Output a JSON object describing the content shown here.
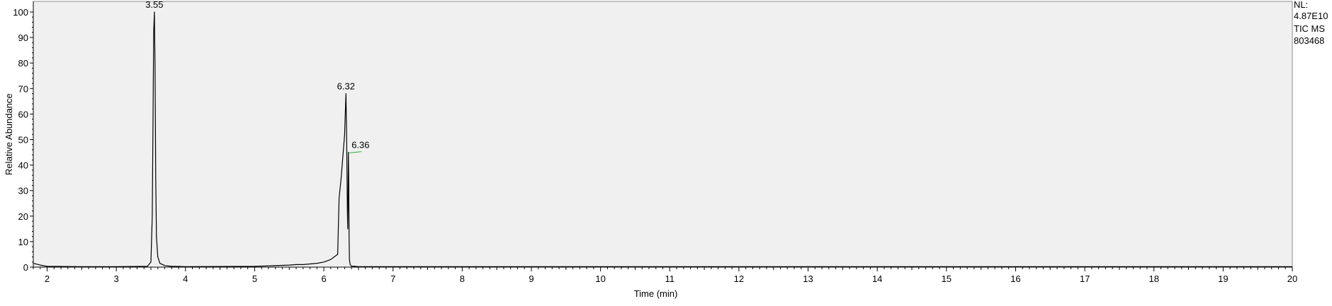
{
  "info": {
    "nl_label": "NL:",
    "nl_value": "4.87E10",
    "trace": "TIC  MS",
    "sample": "803468"
  },
  "chart_data": {
    "type": "line",
    "title": "",
    "xlabel": "Time (min)",
    "ylabel": "Relative Abundance",
    "xlim": [
      1.8,
      20
    ],
    "ylim": [
      0,
      100
    ],
    "x_ticks": [
      2,
      3,
      4,
      5,
      6,
      7,
      8,
      9,
      10,
      11,
      12,
      13,
      14,
      15,
      16,
      17,
      18,
      19,
      20
    ],
    "y_ticks": [
      0,
      10,
      20,
      30,
      40,
      50,
      60,
      70,
      80,
      90,
      100
    ],
    "grid": false,
    "series": [
      {
        "color": "#000000",
        "x": [
          1.8,
          1.9,
          2.0,
          2.5,
          3.0,
          3.45,
          3.5,
          3.52,
          3.53,
          3.54,
          3.55,
          3.56,
          3.57,
          3.58,
          3.6,
          3.63,
          3.7,
          3.8,
          4.0,
          5.0,
          5.5,
          5.6,
          5.7,
          5.9,
          6.0,
          6.1,
          6.2,
          6.22,
          6.25,
          6.28,
          6.3,
          6.31,
          6.32,
          6.33,
          6.34,
          6.345,
          6.35,
          6.355,
          6.36,
          6.365,
          6.37,
          6.38,
          6.4,
          6.45,
          6.5,
          7.0,
          10.0,
          15.0,
          20.0
        ],
        "y": [
          1.5,
          0.8,
          0.3,
          0.2,
          0.2,
          0.3,
          2,
          20,
          55,
          92,
          100,
          80,
          35,
          12,
          4,
          1.5,
          0.6,
          0.3,
          0.2,
          0.3,
          0.8,
          1,
          1,
          1.5,
          2,
          3,
          5,
          27,
          35,
          45,
          52,
          60,
          68,
          50,
          22,
          15,
          28,
          45,
          35,
          12,
          3,
          1,
          0.4,
          0.3,
          0.2,
          0.2,
          0.2,
          0.2,
          0.2
        ]
      }
    ],
    "peak_labels": [
      {
        "x": 3.55,
        "y": 100,
        "text": "3.55"
      },
      {
        "x": 6.32,
        "y": 68,
        "text": "6.32"
      },
      {
        "x": 6.36,
        "y": 45,
        "text": "6.36"
      }
    ]
  }
}
